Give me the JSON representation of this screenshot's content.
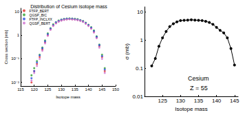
{
  "chart_data": [
    {
      "type": "scatter",
      "title": "Distribution of Cesium isotope mass",
      "x_label": "Isotope mass",
      "y_label": "Cross section [mb]",
      "x": [
        119,
        120,
        121,
        122,
        123,
        124,
        125,
        126,
        127,
        128,
        129,
        130,
        131,
        132,
        133,
        134,
        135,
        136,
        137,
        138,
        139,
        140,
        141,
        142,
        143,
        144,
        145,
        146
      ],
      "series": [
        {
          "name": "FTFP_BERT",
          "color": "#e03030",
          "values": [
            0.01,
            0.03,
            0.06,
            0.12,
            0.25,
            0.5,
            1.0,
            1.8,
            2.6,
            3.3,
            3.9,
            4.3,
            4.6,
            4.8,
            4.9,
            4.8,
            4.7,
            4.5,
            4.2,
            3.8,
            3.2,
            2.6,
            2.0,
            1.4,
            0.8,
            0.35,
            0.12,
            0.03
          ]
        },
        {
          "name": "QGSP_BIC",
          "color": "#30a030",
          "values": [
            0.02,
            0.04,
            0.08,
            0.15,
            0.3,
            0.6,
            1.2,
            2.0,
            2.9,
            3.6,
            4.2,
            4.6,
            4.9,
            5.1,
            5.2,
            5.1,
            5.0,
            4.8,
            4.4,
            4.0,
            3.4,
            2.8,
            2.2,
            1.6,
            0.9,
            0.4,
            0.15,
            0.04
          ]
        },
        {
          "name": "FTFP_INCLXX",
          "color": "#3050e0",
          "values": [
            0.015,
            0.03,
            0.07,
            0.14,
            0.28,
            0.55,
            1.1,
            1.9,
            2.7,
            3.5,
            4.0,
            4.5,
            4.8,
            5.0,
            5.0,
            5.0,
            4.8,
            4.6,
            4.3,
            3.9,
            3.3,
            2.7,
            2.1,
            1.5,
            0.85,
            0.38,
            0.13,
            0.035
          ]
        },
        {
          "name": "QGSP_BERT",
          "color": "#d070d0",
          "values": [
            0.012,
            0.025,
            0.05,
            0.1,
            0.22,
            0.45,
            0.95,
            1.7,
            2.5,
            3.2,
            3.8,
            4.2,
            4.5,
            4.7,
            4.8,
            4.7,
            4.6,
            4.4,
            4.1,
            3.7,
            3.1,
            2.5,
            1.9,
            1.3,
            0.75,
            0.3,
            0.1,
            0.025
          ]
        }
      ],
      "xlim": [
        115,
        150
      ],
      "xticks": [
        115,
        120,
        125,
        130,
        135,
        140,
        145,
        150
      ],
      "ylim": [
        0.007,
        14
      ],
      "yticks": [
        {
          "value": 0.01,
          "label": "10⁻²"
        },
        {
          "value": 0.1,
          "label": "10⁻¹"
        },
        1,
        10
      ],
      "log": "y",
      "grid": false,
      "legend": "upper left",
      "marker": "circle"
    },
    {
      "type": "line",
      "x_label": "Isotope mass",
      "y_label": "σ (mb)",
      "annotations": [
        "Cesium",
        "Z = 55"
      ],
      "x": [
        122,
        123,
        124,
        125,
        126,
        127,
        128,
        129,
        130,
        131,
        132,
        133,
        134,
        135,
        136,
        137,
        138,
        139,
        140,
        141,
        142,
        143,
        144,
        145
      ],
      "values": [
        0.12,
        0.22,
        0.6,
        1.2,
        2.0,
        3.0,
        3.8,
        4.4,
        4.9,
        5.0,
        5.1,
        5.2,
        5.1,
        5.0,
        4.9,
        4.6,
        4.2,
        3.6,
        2.8,
        2.2,
        1.8,
        1.2,
        0.5,
        0.13
      ],
      "color": "#000000",
      "marker": "circle",
      "xlim": [
        120,
        146
      ],
      "xticks": [
        125,
        130,
        135,
        140,
        145
      ],
      "ylim": [
        0.01,
        15
      ],
      "yticks": [
        0.01,
        0.1,
        1,
        10
      ],
      "log": "y",
      "grid": false
    }
  ]
}
